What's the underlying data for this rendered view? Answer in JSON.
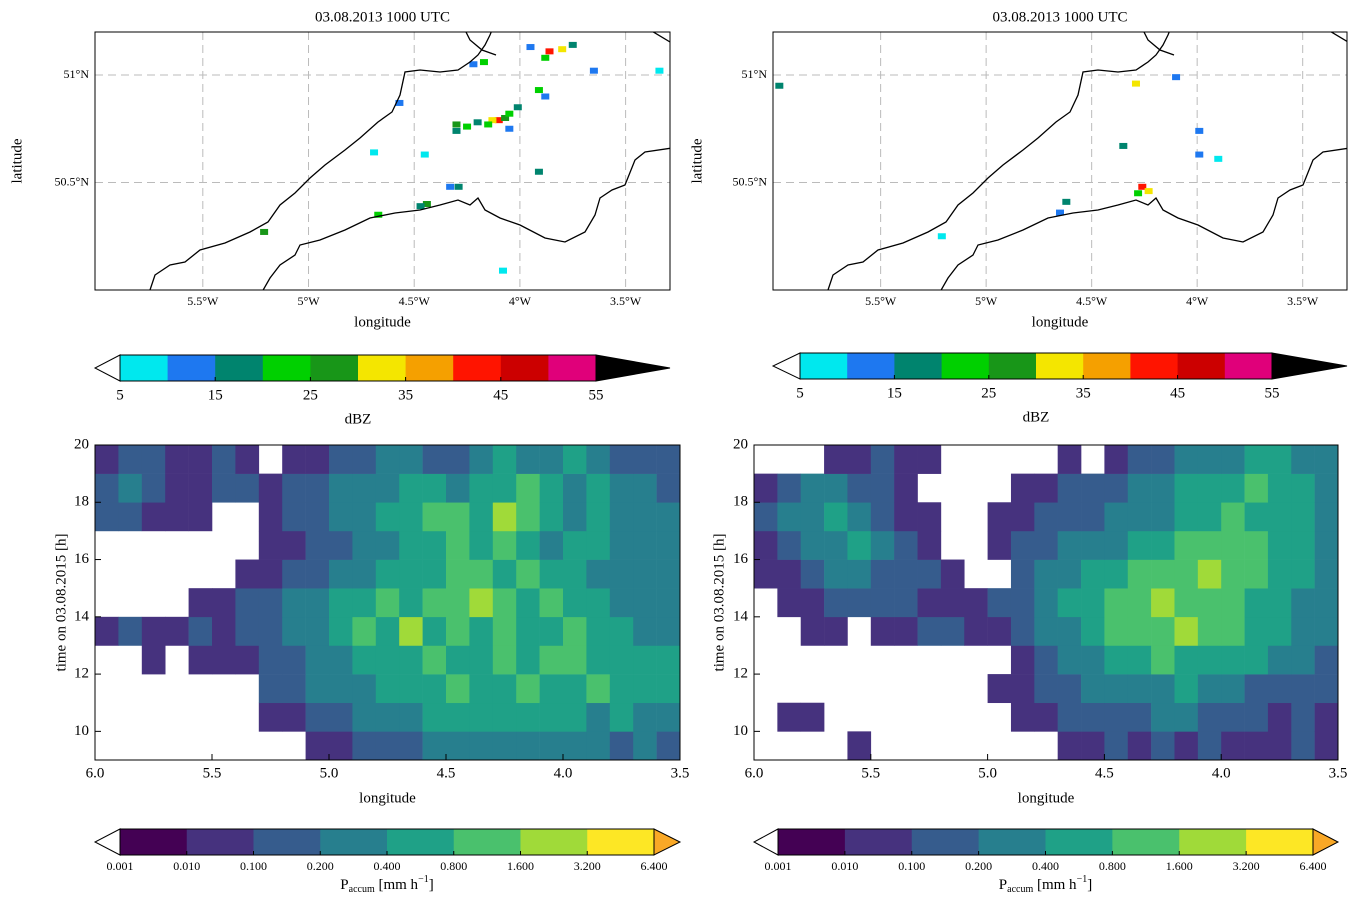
{
  "chart_data": [
    {
      "type": "map",
      "title": "03.08.2013 1000 UTC",
      "xlabel": "longitude",
      "ylabel": "latitude",
      "xlim": [
        -6.01,
        -3.29
      ],
      "ylim": [
        50.0,
        51.2
      ],
      "xticks": [
        {
          "value": -5.5,
          "label": "5.5°W"
        },
        {
          "value": -5,
          "label": "5°W"
        },
        {
          "value": -4.5,
          "label": "4.5°W"
        },
        {
          "value": -4,
          "label": "4°W"
        },
        {
          "value": -3.5,
          "label": "3.5°W"
        }
      ],
      "yticks": [
        {
          "value": 50.5,
          "label": "50.5°N"
        },
        {
          "value": 51,
          "label": "51°N"
        }
      ],
      "grid": true,
      "x": [
        -4.1,
        -4.13,
        -4.07,
        -4.05,
        -4.15,
        -4.2,
        -4.25,
        -4.3,
        -4.3,
        -4.01,
        -4.05,
        -3.86,
        -3.8,
        -3.88,
        -3.75,
        -3.95,
        -4.17,
        -4.22,
        -3.91,
        -3.88,
        -3.65,
        -3.34,
        -4.29,
        -4.33,
        -4.44,
        -4.47,
        -4.67,
        -5.21,
        -4.57,
        -4.45,
        -4.69,
        -3.91,
        -4.08
      ],
      "y": [
        50.79,
        50.79,
        50.8,
        50.82,
        50.77,
        50.78,
        50.76,
        50.77,
        50.74,
        50.85,
        50.75,
        51.11,
        51.12,
        51.08,
        51.14,
        51.13,
        51.06,
        51.05,
        50.93,
        50.9,
        51.02,
        51.02,
        50.48,
        50.48,
        50.4,
        50.39,
        50.35,
        50.27,
        50.87,
        50.63,
        50.64,
        50.55,
        50.09
      ],
      "values": [
        42,
        32,
        27,
        22,
        22,
        17,
        22,
        27,
        17,
        17,
        12,
        42,
        32,
        22,
        17,
        12,
        22,
        12,
        22,
        12,
        12,
        7,
        17,
        12,
        27,
        17,
        22,
        27,
        12,
        7,
        7,
        17,
        7
      ],
      "colorbar": {
        "label": "dBZ",
        "boundaries": [
          5,
          10,
          15,
          20,
          25,
          30,
          35,
          40,
          45,
          50,
          55
        ],
        "ticks": [
          5,
          15,
          25,
          35,
          45,
          55
        ],
        "colors": [
          "#00e8ee",
          "#1e78f0",
          "#00846e",
          "#00d000",
          "#189618",
          "#f4e600",
          "#f5a000",
          "#ff1400",
          "#cc0000",
          "#e0007a"
        ],
        "under_color": "#ffffff",
        "over_color": "#000000"
      }
    },
    {
      "type": "map",
      "title": "03.08.2013 1000 UTC",
      "xlabel": "longitude",
      "ylabel": "latitude",
      "xlim": [
        -6.01,
        -3.29
      ],
      "ylim": [
        50.0,
        51.2
      ],
      "xticks": [
        {
          "value": -5.5,
          "label": "5.5°W"
        },
        {
          "value": -5,
          "label": "5°W"
        },
        {
          "value": -4.5,
          "label": "4.5°W"
        },
        {
          "value": -4,
          "label": "4°W"
        },
        {
          "value": -3.5,
          "label": "3.5°W"
        }
      ],
      "yticks": [
        {
          "value": 50.5,
          "label": "50.5°N"
        },
        {
          "value": 51,
          "label": "51°N"
        }
      ],
      "grid": true,
      "x": [
        -4.26,
        -4.23,
        -4.28,
        -4.62,
        -4.65,
        -4.35,
        -4.29,
        -4.1,
        -5.98,
        -3.99,
        -3.99,
        -3.9,
        -5.21
      ],
      "y": [
        50.48,
        50.46,
        50.45,
        50.41,
        50.36,
        50.67,
        50.96,
        50.99,
        50.95,
        50.74,
        50.63,
        50.61,
        50.25
      ],
      "values": [
        42,
        32,
        22,
        17,
        12,
        17,
        32,
        12,
        17,
        12,
        12,
        7,
        7
      ],
      "colorbar": {
        "label": "dBZ",
        "boundaries": [
          5,
          10,
          15,
          20,
          25,
          30,
          35,
          40,
          45,
          50,
          55
        ],
        "ticks": [
          5,
          15,
          25,
          35,
          45,
          55
        ],
        "colors": [
          "#00e8ee",
          "#1e78f0",
          "#00846e",
          "#00d000",
          "#189618",
          "#f4e600",
          "#f5a000",
          "#ff1400",
          "#cc0000",
          "#e0007a"
        ],
        "under_color": "#ffffff",
        "over_color": "#000000"
      }
    },
    {
      "type": "heatmap",
      "xlabel": "longitude",
      "ylabel": "time on 03.08.2015 [h]",
      "xlim": [
        6.0,
        3.5
      ],
      "ylim": [
        9,
        20
      ],
      "xticks": [
        {
          "value": 6.0,
          "label": "6.0"
        },
        {
          "value": 5.5,
          "label": "5.5"
        },
        {
          "value": 5.0,
          "label": "5.0"
        },
        {
          "value": 4.5,
          "label": "4.5"
        },
        {
          "value": 4.0,
          "label": "4.0"
        },
        {
          "value": 3.5,
          "label": "3.5"
        }
      ],
      "yticks": [
        10,
        12,
        14,
        16,
        18,
        20
      ],
      "x": [
        6.0,
        5.9,
        5.8,
        5.7,
        5.6,
        5.5,
        5.4,
        5.3,
        5.2,
        5.1,
        5.0,
        4.9,
        4.8,
        4.7,
        4.6,
        4.5,
        4.4,
        4.3,
        4.2,
        4.1,
        4.0,
        3.9,
        3.8,
        3.7,
        3.6,
        3.5
      ],
      "y": [
        9,
        10,
        11,
        12,
        13,
        14,
        15,
        16,
        17,
        18,
        19,
        20
      ],
      "values": [
        [
          null,
          null,
          null,
          null,
          null,
          null,
          null,
          null,
          null,
          0.05,
          0.05,
          0.15,
          0.15,
          0.15,
          0.3,
          0.3,
          0.3,
          0.3,
          0.3,
          0.3,
          0.3,
          0.3,
          0.15,
          0.3,
          0.15
        ],
        [
          null,
          null,
          null,
          null,
          null,
          null,
          null,
          0.05,
          0.05,
          0.15,
          0.15,
          0.3,
          0.3,
          0.3,
          0.6,
          0.6,
          0.6,
          0.6,
          0.6,
          0.6,
          0.6,
          0.3,
          0.6,
          0.3,
          0.3
        ],
        [
          null,
          null,
          null,
          null,
          null,
          null,
          null,
          0.15,
          0.15,
          0.3,
          0.3,
          0.3,
          0.6,
          0.6,
          0.6,
          1.2,
          0.6,
          0.6,
          1.2,
          0.6,
          0.6,
          1.2,
          0.6,
          0.6,
          0.6
        ],
        [
          null,
          null,
          0.05,
          null,
          0.05,
          0.05,
          0.05,
          0.15,
          0.15,
          0.3,
          0.3,
          0.6,
          0.6,
          0.6,
          1.2,
          0.6,
          0.6,
          1.2,
          0.6,
          1.2,
          1.2,
          0.6,
          0.6,
          0.6,
          0.6
        ],
        [
          0.05,
          0.15,
          0.05,
          0.05,
          0.15,
          0.05,
          0.15,
          0.15,
          0.3,
          0.3,
          0.6,
          1.2,
          0.6,
          2.4,
          0.6,
          1.2,
          0.6,
          1.2,
          0.6,
          0.6,
          1.2,
          0.6,
          0.6,
          0.3,
          0.3
        ],
        [
          null,
          null,
          null,
          null,
          0.05,
          0.05,
          0.15,
          0.15,
          0.3,
          0.3,
          0.6,
          0.6,
          1.2,
          0.6,
          1.2,
          1.2,
          2.4,
          1.2,
          0.6,
          1.2,
          0.6,
          0.6,
          0.3,
          0.3,
          0.3
        ],
        [
          null,
          null,
          null,
          null,
          null,
          null,
          0.05,
          0.05,
          0.15,
          0.15,
          0.3,
          0.3,
          0.6,
          0.6,
          0.6,
          1.2,
          1.2,
          0.6,
          1.2,
          0.6,
          0.6,
          0.3,
          0.3,
          0.3,
          0.3
        ],
        [
          null,
          null,
          null,
          null,
          null,
          null,
          null,
          0.05,
          0.05,
          0.15,
          0.15,
          0.3,
          0.3,
          0.6,
          0.6,
          1.2,
          0.6,
          1.2,
          0.6,
          0.3,
          0.6,
          0.6,
          0.3,
          0.3,
          0.3
        ],
        [
          0.15,
          0.15,
          0.05,
          0.05,
          0.05,
          null,
          null,
          0.05,
          0.15,
          0.15,
          0.3,
          0.3,
          0.6,
          0.6,
          1.2,
          1.2,
          0.6,
          2.4,
          1.2,
          0.6,
          0.3,
          0.6,
          0.3,
          0.3,
          0.3
        ],
        [
          0.15,
          0.3,
          0.15,
          0.05,
          0.05,
          0.15,
          0.15,
          0.05,
          0.15,
          0.15,
          0.3,
          0.3,
          0.3,
          0.6,
          0.6,
          0.3,
          0.6,
          0.6,
          1.2,
          0.6,
          0.3,
          0.6,
          0.3,
          0.3,
          0.15
        ],
        [
          0.05,
          0.15,
          0.15,
          0.05,
          0.05,
          0.15,
          0.05,
          null,
          0.05,
          0.05,
          0.15,
          0.15,
          0.3,
          0.3,
          0.15,
          0.15,
          0.3,
          0.6,
          0.3,
          0.3,
          0.6,
          0.3,
          0.15,
          0.15,
          0.15
        ]
      ],
      "colorbar": {
        "label": {
          "symbol": "P",
          "subscript": "accum",
          "unit": " [mm h",
          "exponent": "−1",
          "close": "]"
        },
        "boundaries": [
          {
            "value": 0.001,
            "label": "0.001"
          },
          {
            "value": 0.01,
            "label": "0.010"
          },
          {
            "value": 0.1,
            "label": "0.100"
          },
          {
            "value": 0.2,
            "label": "0.200"
          },
          {
            "value": 0.4,
            "label": "0.400"
          },
          {
            "value": 0.8,
            "label": "0.800"
          },
          {
            "value": 1.6,
            "label": "1.600"
          },
          {
            "value": 3.2,
            "label": "3.200"
          },
          {
            "value": 6.4,
            "label": "6.400"
          }
        ],
        "colors": [
          "#440154",
          "#46327e",
          "#365c8d",
          "#277f8e",
          "#1fa187",
          "#4ac16d",
          "#a0da39",
          "#fde725"
        ],
        "under_color": "#ffffff",
        "over_color": "#f9a826"
      }
    },
    {
      "type": "heatmap",
      "xlabel": "longitude",
      "ylabel": "time on 03.08.2015 [h]",
      "xlim": [
        6.0,
        3.5
      ],
      "ylim": [
        9,
        20
      ],
      "xticks": [
        {
          "value": 6.0,
          "label": "6.0"
        },
        {
          "value": 5.5,
          "label": "5.5"
        },
        {
          "value": 5.0,
          "label": "5.0"
        },
        {
          "value": 4.5,
          "label": "4.5"
        },
        {
          "value": 4.0,
          "label": "4.0"
        },
        {
          "value": 3.5,
          "label": "3.5"
        }
      ],
      "yticks": [
        10,
        12,
        14,
        16,
        18,
        20
      ],
      "x": [
        6.0,
        5.9,
        5.8,
        5.7,
        5.6,
        5.5,
        5.4,
        5.3,
        5.2,
        5.1,
        5.0,
        4.9,
        4.8,
        4.7,
        4.6,
        4.5,
        4.4,
        4.3,
        4.2,
        4.1,
        4.0,
        3.9,
        3.8,
        3.7,
        3.6,
        3.5
      ],
      "y": [
        9,
        10,
        11,
        12,
        13,
        14,
        15,
        16,
        17,
        18,
        19,
        20
      ],
      "values": [
        [
          null,
          null,
          null,
          null,
          0.05,
          null,
          null,
          null,
          null,
          null,
          null,
          null,
          null,
          0.05,
          0.05,
          0.15,
          0.05,
          0.15,
          0.05,
          0.15,
          0.05,
          0.05,
          0.05,
          0.15,
          0.05
        ],
        [
          null,
          0.05,
          0.05,
          null,
          null,
          null,
          null,
          null,
          null,
          null,
          null,
          0.05,
          0.05,
          0.15,
          0.15,
          0.15,
          0.15,
          0.3,
          0.3,
          0.15,
          0.15,
          0.15,
          0.05,
          0.15,
          0.05
        ],
        [
          null,
          null,
          null,
          null,
          null,
          null,
          null,
          null,
          null,
          null,
          0.05,
          0.05,
          0.15,
          0.15,
          0.3,
          0.3,
          0.3,
          0.3,
          0.6,
          0.3,
          0.3,
          0.15,
          0.15,
          0.15,
          0.15
        ],
        [
          null,
          null,
          null,
          null,
          null,
          null,
          null,
          null,
          null,
          null,
          null,
          0.05,
          0.15,
          0.3,
          0.3,
          0.6,
          0.6,
          1.2,
          0.6,
          0.6,
          0.6,
          0.6,
          0.3,
          0.3,
          0.15
        ],
        [
          null,
          null,
          0.05,
          0.05,
          null,
          0.05,
          0.05,
          0.15,
          0.15,
          0.05,
          0.05,
          0.15,
          0.3,
          0.3,
          0.6,
          1.2,
          1.2,
          1.2,
          2.4,
          1.2,
          1.2,
          0.6,
          0.6,
          0.3,
          0.3
        ],
        [
          null,
          0.05,
          0.05,
          0.15,
          0.15,
          0.15,
          0.15,
          0.05,
          0.05,
          0.05,
          0.15,
          0.15,
          0.3,
          0.6,
          0.6,
          1.2,
          1.2,
          2.4,
          1.2,
          1.2,
          1.2,
          0.6,
          0.6,
          0.3,
          0.3
        ],
        [
          0.05,
          0.05,
          0.15,
          0.3,
          0.3,
          0.15,
          0.15,
          0.15,
          0.05,
          null,
          null,
          0.15,
          0.3,
          0.3,
          0.6,
          0.6,
          1.2,
          1.2,
          1.2,
          2.4,
          1.2,
          1.2,
          0.6,
          0.6,
          0.3
        ],
        [
          0.05,
          0.15,
          0.3,
          0.3,
          0.6,
          0.3,
          0.15,
          0.05,
          null,
          null,
          0.05,
          0.15,
          0.15,
          0.3,
          0.3,
          0.3,
          0.6,
          0.6,
          1.2,
          1.2,
          1.2,
          1.2,
          0.6,
          0.6,
          0.3
        ],
        [
          0.15,
          0.3,
          0.3,
          0.6,
          0.3,
          0.15,
          0.05,
          0.05,
          null,
          null,
          0.05,
          0.05,
          0.15,
          0.15,
          0.15,
          0.3,
          0.3,
          0.3,
          0.6,
          0.6,
          1.2,
          0.6,
          0.6,
          0.6,
          0.3
        ],
        [
          0.05,
          0.15,
          0.3,
          0.3,
          0.15,
          0.15,
          0.05,
          null,
          null,
          null,
          null,
          0.05,
          0.05,
          0.15,
          0.15,
          0.15,
          0.3,
          0.3,
          0.6,
          0.6,
          0.6,
          1.2,
          0.6,
          0.6,
          0.3
        ],
        [
          null,
          null,
          null,
          0.05,
          0.05,
          0.15,
          0.05,
          0.05,
          null,
          null,
          null,
          null,
          null,
          0.05,
          null,
          0.05,
          0.15,
          0.15,
          0.3,
          0.3,
          0.3,
          0.6,
          0.6,
          0.3,
          0.3
        ]
      ],
      "colorbar": {
        "label": {
          "symbol": "P",
          "subscript": "accum",
          "unit": " [mm h",
          "exponent": "−1",
          "close": "]"
        },
        "boundaries": [
          {
            "value": 0.001,
            "label": "0.001"
          },
          {
            "value": 0.01,
            "label": "0.010"
          },
          {
            "value": 0.1,
            "label": "0.100"
          },
          {
            "value": 0.2,
            "label": "0.200"
          },
          {
            "value": 0.4,
            "label": "0.400"
          },
          {
            "value": 0.8,
            "label": "0.800"
          },
          {
            "value": 1.6,
            "label": "1.600"
          },
          {
            "value": 3.2,
            "label": "3.200"
          },
          {
            "value": 6.4,
            "label": "6.400"
          }
        ],
        "colors": [
          "#440154",
          "#46327e",
          "#365c8d",
          "#277f8e",
          "#1fa187",
          "#4ac16d",
          "#a0da39",
          "#fde725"
        ],
        "under_color": "#ffffff",
        "over_color": "#f9a826"
      }
    }
  ]
}
